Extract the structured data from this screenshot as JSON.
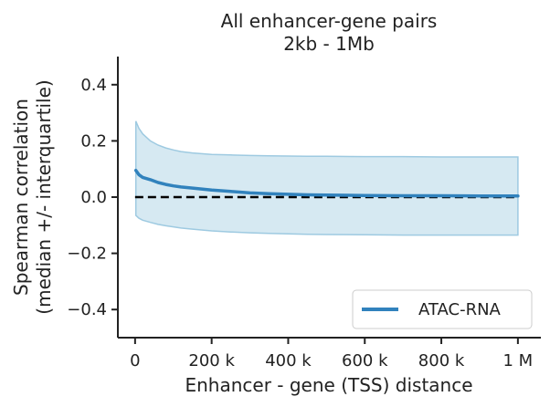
{
  "chart_data": {
    "type": "line",
    "title": [
      "All enhancer-gene pairs",
      "2kb - 1Mb"
    ],
    "xlabel": "Enhancer - gene (TSS) distance",
    "ylabel": [
      "Spearman correlation",
      "(median +/- interquartile)"
    ],
    "xlim": [
      -45000,
      1060000
    ],
    "ylim": [
      -0.5,
      0.5
    ],
    "xticks": [
      {
        "value": 0,
        "label": "0"
      },
      {
        "value": 200000,
        "label": "200 k"
      },
      {
        "value": 400000,
        "label": "400 k"
      },
      {
        "value": 600000,
        "label": "600 k"
      },
      {
        "value": 800000,
        "label": "800 k"
      },
      {
        "value": 1000000,
        "label": "1 M"
      }
    ],
    "yticks": [
      {
        "value": 0.4,
        "label": "0.4"
      },
      {
        "value": 0.2,
        "label": "0.2"
      },
      {
        "value": 0.0,
        "label": "0.0"
      },
      {
        "value": -0.2,
        "label": "−0.2"
      },
      {
        "value": -0.4,
        "label": "−0.4"
      }
    ],
    "reference_line": {
      "y": 0,
      "style": "dashed",
      "color": "#000000"
    },
    "legend": {
      "placement": "lower-right",
      "entries": [
        "ATAC-RNA"
      ]
    },
    "grid": false,
    "series": [
      {
        "name": "ATAC-RNA",
        "color": "#3182bd",
        "band_color": "#9ecae1",
        "x": [
          2000,
          10000,
          20000,
          40000,
          60000,
          80000,
          100000,
          120000,
          150000,
          200000,
          250000,
          300000,
          350000,
          400000,
          450000,
          500000,
          600000,
          700000,
          800000,
          900000,
          1000000
        ],
        "median": [
          0.095,
          0.08,
          0.07,
          0.062,
          0.052,
          0.045,
          0.04,
          0.036,
          0.032,
          0.025,
          0.02,
          0.015,
          0.012,
          0.01,
          0.008,
          0.007,
          0.006,
          0.005,
          0.005,
          0.004,
          0.004
        ],
        "upper": [
          0.27,
          0.245,
          0.225,
          0.2,
          0.185,
          0.175,
          0.168,
          0.162,
          0.157,
          0.152,
          0.15,
          0.148,
          0.147,
          0.146,
          0.145,
          0.145,
          0.144,
          0.144,
          0.143,
          0.143,
          0.143
        ],
        "lower": [
          -0.065,
          -0.075,
          -0.082,
          -0.09,
          -0.097,
          -0.102,
          -0.106,
          -0.11,
          -0.114,
          -0.12,
          -0.124,
          -0.127,
          -0.129,
          -0.131,
          -0.132,
          -0.133,
          -0.134,
          -0.135,
          -0.135,
          -0.135,
          -0.135
        ]
      }
    ]
  }
}
